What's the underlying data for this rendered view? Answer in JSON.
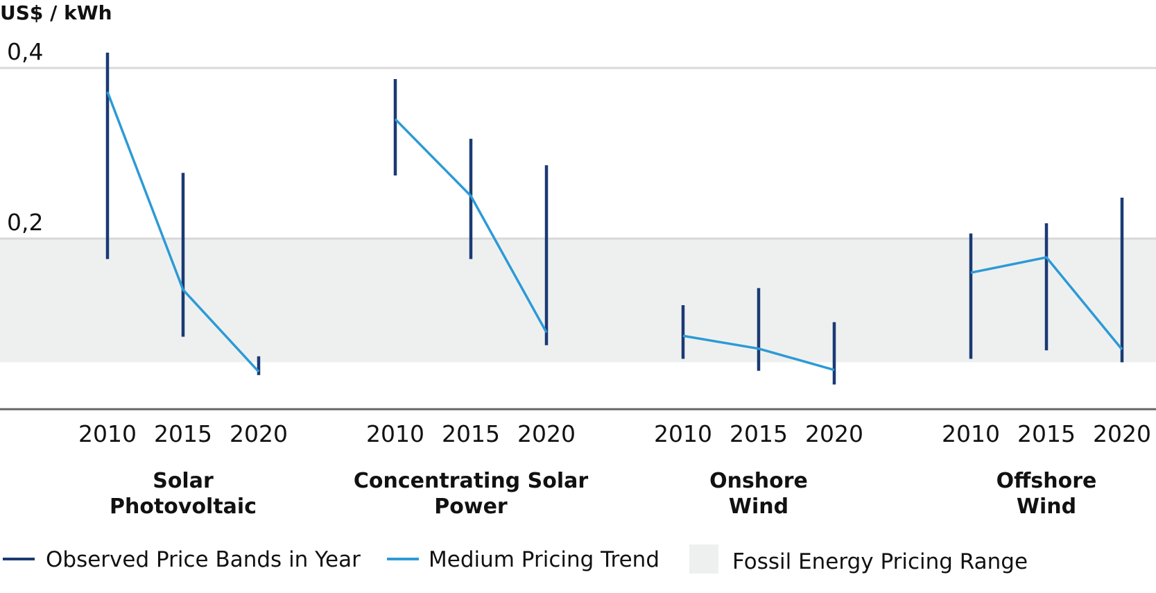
{
  "chart_data": {
    "type": "line",
    "ylabel": "US$ / kWh",
    "yticks": [
      "0,4",
      "0,2"
    ],
    "ytick_values": [
      0.4,
      0.2
    ],
    "ylim": [
      0,
      0.44
    ],
    "fossil_range": [
      0.055,
      0.2
    ],
    "grid": true,
    "legend_position": "bottom",
    "legend": {
      "bands": "Observed Price Bands in Year",
      "trend": "Medium Pricing Trend",
      "fossil": "Fossil Energy Pricing Range"
    },
    "colors": {
      "band": "#1a3a73",
      "trend": "#2c9ad6",
      "fossil": "#eef0f0",
      "grid": "#d8d8d8",
      "axis": "#666666"
    },
    "groups": [
      {
        "name": "Solar Photovoltaic",
        "label_lines": [
          "Solar",
          "Photovoltaic"
        ],
        "years": [
          "2010",
          "2015",
          "2020"
        ],
        "band_low": [
          0.176,
          0.085,
          0.04
        ],
        "band_high": [
          0.418,
          0.277,
          0.062
        ],
        "trend": [
          0.372,
          0.14,
          0.044
        ]
      },
      {
        "name": "Concentrating Solar Power",
        "label_lines": [
          "Concentrating Solar",
          "Power"
        ],
        "years": [
          "2010",
          "2015",
          "2020"
        ],
        "band_low": [
          0.274,
          0.176,
          0.075
        ],
        "band_high": [
          0.387,
          0.317,
          0.286
        ],
        "trend": [
          0.34,
          0.25,
          0.09
        ]
      },
      {
        "name": "Onshore Wind",
        "label_lines": [
          "Onshore",
          "Wind"
        ],
        "years": [
          "2010",
          "2015",
          "2020"
        ],
        "band_low": [
          0.059,
          0.045,
          0.029
        ],
        "band_high": [
          0.122,
          0.142,
          0.102
        ],
        "trend": [
          0.086,
          0.071,
          0.046
        ]
      },
      {
        "name": "Offshore Wind",
        "label_lines": [
          "Offshore",
          "Wind"
        ],
        "years": [
          "2010",
          "2015",
          "2020"
        ],
        "band_low": [
          0.059,
          0.069,
          0.055
        ],
        "band_high": [
          0.206,
          0.218,
          0.248
        ],
        "trend": [
          0.16,
          0.178,
          0.07
        ]
      }
    ]
  }
}
